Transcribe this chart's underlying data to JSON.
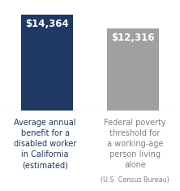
{
  "categories_0": "Average annual\nbenefit for a\ndisabled worker\nin California\n(estimated)",
  "categories_1": "Federal poverty\nthreshold for\na working-age\nperson living\nalone",
  "categories_1_sub": "(U.S. Census Bureau)",
  "values": [
    14364,
    12316
  ],
  "labels": [
    "$14,364",
    "$12,316"
  ],
  "bar_colors": [
    "#1f3864",
    "#a0a0a0"
  ],
  "label_color": "#ffffff",
  "cat_color_0": "#1f3864",
  "cat_color_1": "#808080",
  "sub_color": "#808080",
  "background_color": "#ffffff",
  "ylim": [
    0,
    16000
  ],
  "bar_width": 0.6,
  "label_fontsize": 8.5,
  "cat_fontsize": 7.0,
  "sub_fontsize": 5.8,
  "figsize": [
    2.22,
    2.35
  ],
  "dpi": 100
}
